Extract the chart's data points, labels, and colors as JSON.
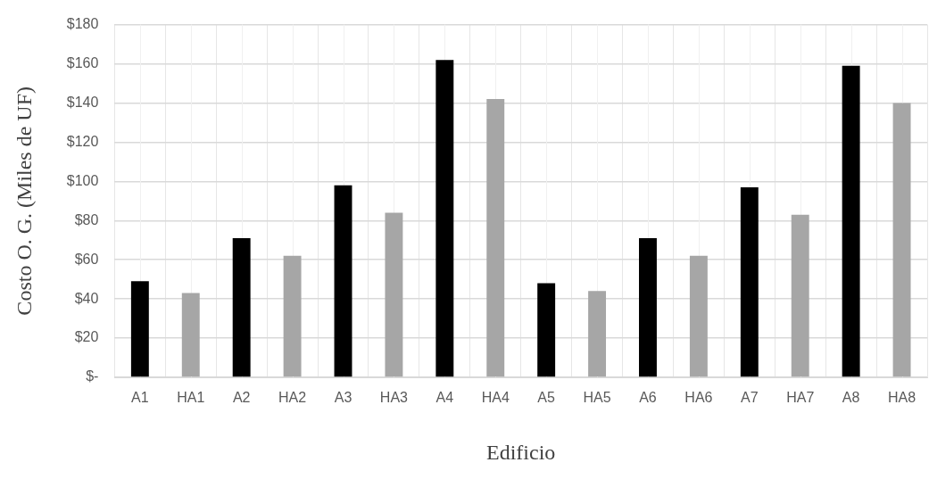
{
  "chart_data": {
    "type": "bar",
    "xlabel": "Edificio",
    "ylabel": "Costo O. G. (Miles de UF)",
    "categories": [
      "A1",
      "HA1",
      "A2",
      "HA2",
      "A3",
      "HA3",
      "A4",
      "HA4",
      "A5",
      "HA5",
      "A6",
      "HA6",
      "A7",
      "HA7",
      "A8",
      "HA8"
    ],
    "values": [
      49,
      43,
      71,
      62,
      98,
      84,
      162,
      142,
      48,
      44,
      71,
      62,
      97,
      83,
      159,
      140
    ],
    "colors": [
      "#000000",
      "#a6a6a6",
      "#000000",
      "#a6a6a6",
      "#000000",
      "#a6a6a6",
      "#000000",
      "#a6a6a6",
      "#000000",
      "#a6a6a6",
      "#000000",
      "#a6a6a6",
      "#000000",
      "#a6a6a6",
      "#000000",
      "#a6a6a6"
    ],
    "ylim": [
      0,
      180
    ],
    "yticks": [
      {
        "value": 0,
        "label": "$-"
      },
      {
        "value": 20,
        "label": "$20"
      },
      {
        "value": 40,
        "label": "$40"
      },
      {
        "value": 60,
        "label": "$60"
      },
      {
        "value": 80,
        "label": "$80"
      },
      {
        "value": 100,
        "label": "$100"
      },
      {
        "value": 120,
        "label": "$120"
      },
      {
        "value": 140,
        "label": "$140"
      },
      {
        "value": 160,
        "label": "$160"
      },
      {
        "value": 180,
        "label": "$180"
      }
    ],
    "grid": true,
    "legend": false
  }
}
